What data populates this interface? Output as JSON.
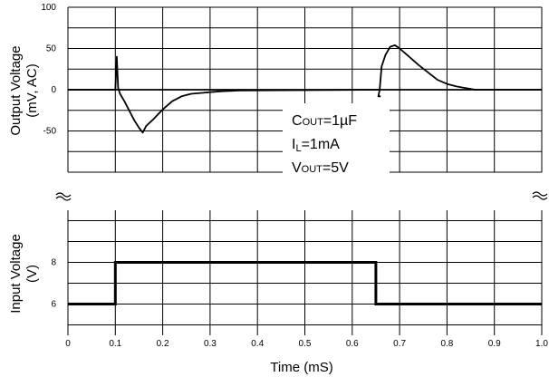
{
  "chart_data": {
    "type": "line",
    "xlabel": "Time (mS)",
    "xlim": [
      0,
      1.0
    ],
    "x_ticks": [
      "0",
      "0.1",
      "0.2",
      "0.3",
      "0.4",
      "0.5",
      "0.6",
      "0.7",
      "0.8",
      "0.9",
      "1.0"
    ],
    "grid": true,
    "panels": [
      {
        "name": "output",
        "ylabel_line1": "Output Voltage",
        "ylabel_line2": "(mV, AC)",
        "y_ticks": [
          "100",
          "50",
          "0",
          "-50"
        ],
        "ylim": [
          -100,
          100
        ],
        "series": [
          {
            "x": [
              0.0,
              0.1,
              0.103,
              0.106,
              0.11,
              0.12,
              0.13,
              0.14,
              0.15,
              0.158,
              0.165,
              0.18,
              0.2,
              0.22,
              0.24,
              0.26,
              0.28,
              0.3,
              0.32,
              0.36,
              0.66
            ],
            "y": [
              0,
              0,
              40,
              2,
              -5,
              -15,
              -26,
              -37,
              -46,
              -52,
              -44,
              -36,
              -24,
              -14,
              -8,
              -5,
              -4,
              -3,
              -2,
              -1,
              0
            ]
          },
          {
            "x": [
              0.66,
              0.655,
              0.658,
              0.662,
              0.67,
              0.68,
              0.69,
              0.7,
              0.72,
              0.74,
              0.76,
              0.78,
              0.8,
              0.82,
              0.84,
              0.86,
              1.0
            ],
            "y": [
              -8,
              -8,
              0,
              28,
              42,
              52,
              54,
              50,
              40,
              30,
              21,
              12,
              7,
              4,
              2,
              0,
              0
            ]
          }
        ]
      },
      {
        "name": "input",
        "ylabel_line1": "Input Voltage",
        "ylabel_line2": "(V)",
        "y_ticks": [
          "8",
          "6"
        ],
        "ylim": [
          4.5,
          10.5
        ],
        "series": [
          {
            "x": [
              0.0,
              0.1,
              0.1,
              0.65,
              0.65,
              1.0
            ],
            "y": [
              6,
              6,
              8,
              8,
              6,
              6
            ]
          }
        ]
      }
    ],
    "annotation": {
      "line1_main": "C",
      "line1_sub": "OUT",
      "line1_rest": "=1µF",
      "line2_main": "I",
      "line2_sub": "L",
      "line2_rest": "=1mA",
      "line3_main": "V",
      "line3_sub": "OUT",
      "line3_rest": "=5V"
    }
  }
}
